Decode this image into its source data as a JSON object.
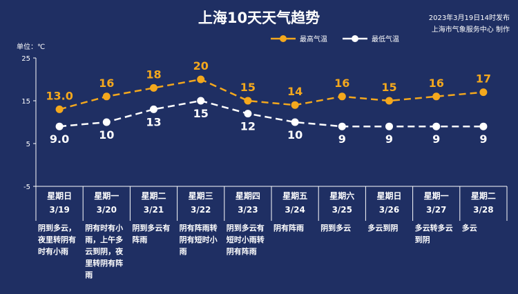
{
  "header": {
    "title": "上海10天天气趋势",
    "publish_line1": "2023年3月19日14时发布",
    "publish_line2": "上海市气象服务中心 制作",
    "unit": "单位：℃"
  },
  "colors": {
    "background": "#1f2f63",
    "high": "#f4a81d",
    "low": "#ffffff"
  },
  "chart_data": {
    "type": "line",
    "ylim": [
      -5,
      25
    ],
    "yticks": [
      "25",
      "15",
      "5",
      "-5"
    ],
    "categories": [
      "3/19",
      "3/20",
      "3/21",
      "3/22",
      "3/23",
      "3/24",
      "3/25",
      "3/26",
      "3/27",
      "3/28"
    ],
    "weekdays": [
      "星期日",
      "星期一",
      "星期二",
      "星期三",
      "星期四",
      "星期五",
      "星期六",
      "星期日",
      "星期一",
      "星期二"
    ],
    "series": [
      {
        "name": "最高气温",
        "values": [
          13.0,
          16,
          18,
          20,
          15,
          14,
          16,
          15,
          16,
          17
        ],
        "labels": [
          "13.0",
          "16",
          "18",
          "20",
          "15",
          "14",
          "16",
          "15",
          "16",
          "17"
        ]
      },
      {
        "name": "最低气温",
        "values": [
          9.0,
          10,
          13,
          15,
          12,
          10,
          9,
          9,
          9,
          9
        ],
        "labels": [
          "9.0",
          "10",
          "13",
          "15",
          "12",
          "10",
          "9",
          "9",
          "9",
          "9"
        ]
      }
    ],
    "descriptions": [
      "阴到多云，夜里转阴有时有小雨",
      "阴有时有小雨，上午多云到阴，夜里转阴有阵雨",
      "阴到多云有阵雨",
      "阴有阵雨转阴有短时小雨",
      "阴到多云有短时小雨转阴有阵雨",
      "阴有阵雨",
      "阴到多云",
      "多云到阴",
      "多云转多云到阴",
      "多云"
    ]
  }
}
